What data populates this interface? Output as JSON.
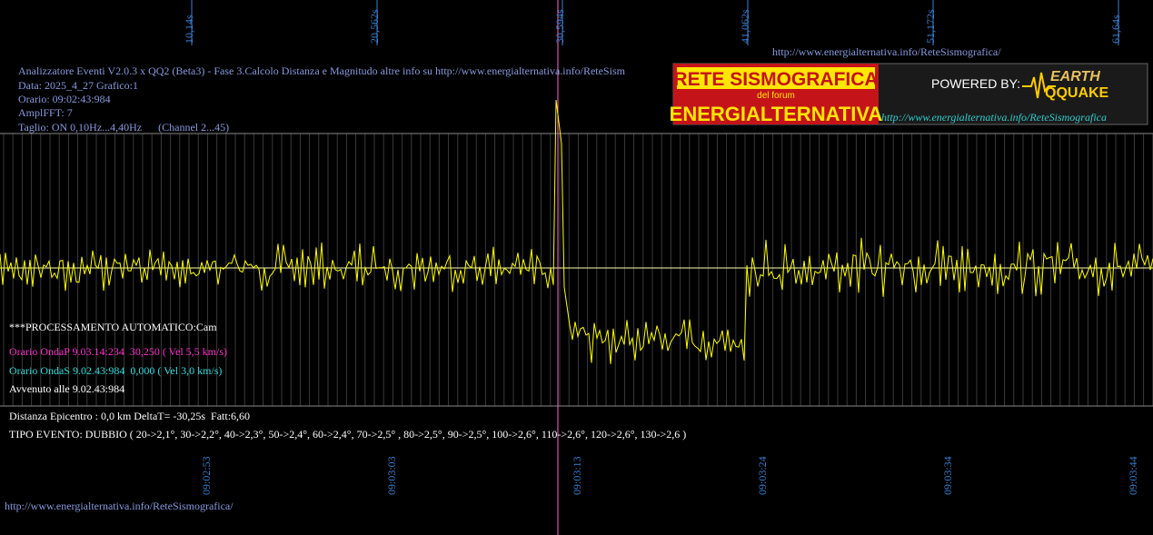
{
  "top_link": "http://www.energialternativa.info/ReteSismografica/",
  "time_axis": {
    "seconds": [
      "10,14s",
      "20,562s",
      "30,594s",
      "41,062s",
      "51,172s",
      "61,64s"
    ],
    "clock": [
      "09:02:53",
      "09:03:03",
      "09:03:13",
      "09:03:24",
      "09:03:34",
      "09:03:44"
    ]
  },
  "info": {
    "lines": [
      "Analizzatore Eventi V2.0.3 x QQ2 (Beta3) - Fase 3.Calcolo Distanza e Magnitudo altre info su http://www.energialternativa.info/ReteSism",
      "Data: 2025_4_27 Grafico:1",
      "Orario: 09:02:43:984",
      "AmplFFT: 7",
      "Taglio: ON 0,10Hz...4,40Hz      (Channel 2...45)"
    ]
  },
  "processing": {
    "title": "***PROCESSAMENTO AUTOMATICO:Cam",
    "onda_p": "Orario OndaP 9.03.14:234  30,250 ( Vel 5,5 km/s)",
    "onda_s": "Orario OndaS 9.02.43:984  0,000 ( Vel 3,0 km/s)",
    "occurred": "Avvenuto alle 9.02.43:984"
  },
  "summary": {
    "distance": "Distanza Epicentro : 0,0 km DeltaT= -30,25s  Fatt:6,60",
    "event_type": "TIPO EVENTO: DUBBIO ( 20->2,1°, 30->2,2°, 40->2,3°, 50->2,4°, 60->2,4°, 70->2,5° , 80->2,5°, 90->2,5°, 100->2,6°, 110->2,6°, 120->2,6°, 130->2,6 )"
  },
  "logo": {
    "title": "RETE SISMOGRAFICA",
    "subtitle": "del forum",
    "name": "ENERGIALTERNATIVA",
    "powered": "POWERED BY:",
    "brand_1": "EARTH",
    "brand_2": "QQUAKE",
    "link": "http://www.energialternativa.info/ReteSismografica"
  },
  "bottom_link": "http://www.energialternativa.info/ReteSismografica/"
}
